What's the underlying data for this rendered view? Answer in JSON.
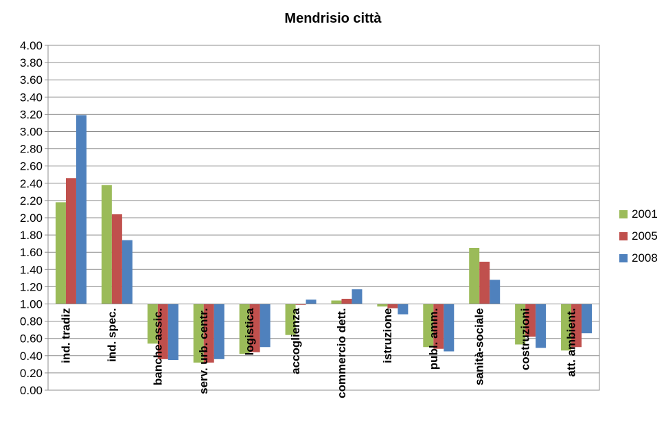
{
  "chart_data": {
    "type": "bar",
    "title": "Mendrisio città",
    "xlabel": "",
    "ylabel": "",
    "ylim": [
      0,
      4
    ],
    "baseline": 1.0,
    "yticks": [
      "0.00",
      "0.20",
      "0.40",
      "0.60",
      "0.80",
      "1.00",
      "1.20",
      "1.40",
      "1.60",
      "1.80",
      "2.00",
      "2.20",
      "2.40",
      "2.60",
      "2.80",
      "3.00",
      "3.20",
      "3.40",
      "3.60",
      "3.80",
      "4.00"
    ],
    "grid": true,
    "legend_position": "right",
    "categories": [
      "ind. tradiz",
      "ind. spec.",
      "banche-assic.",
      "serv. urb. centr.",
      "logistica",
      "accoglienza",
      "commercio dett.",
      "istruzione",
      "publ. amm.",
      "sanità-sociale",
      "costruzioni",
      "att. ambient."
    ],
    "series": [
      {
        "name": "2001",
        "color": "#9bbb59",
        "values": [
          2.18,
          2.38,
          0.54,
          0.32,
          0.42,
          0.64,
          1.04,
          0.97,
          0.5,
          1.65,
          0.53,
          0.46
        ]
      },
      {
        "name": "2005",
        "color": "#c0504d",
        "values": [
          2.46,
          2.04,
          0.36,
          0.32,
          0.44,
          0.99,
          1.06,
          0.95,
          0.48,
          1.49,
          0.62,
          0.5
        ]
      },
      {
        "name": "2008",
        "color": "#4f81bd",
        "values": [
          3.19,
          1.74,
          0.35,
          0.36,
          0.5,
          1.05,
          1.17,
          0.88,
          0.45,
          1.28,
          0.49,
          0.66
        ]
      }
    ]
  }
}
